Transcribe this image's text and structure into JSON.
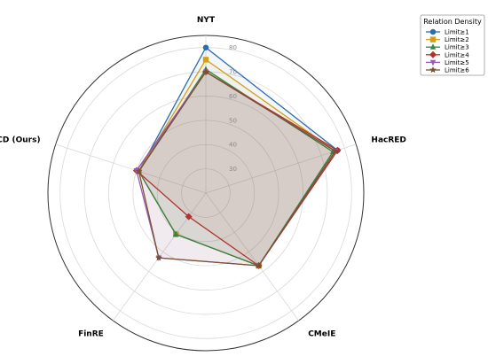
{
  "chart_data": {
    "type": "radar",
    "axes": [
      "NYT",
      "HacRED",
      "CMeIE",
      "FinRE",
      "SNCD (Ours)"
    ],
    "r_ticks": [
      30,
      40,
      50,
      60,
      70,
      80
    ],
    "r_min": 20,
    "r_max": 85,
    "grid": true,
    "legend_title": "Relation Density",
    "legend_position": "top-right",
    "series": [
      {
        "name": "Limit≥1",
        "color": "#2b6cb0",
        "marker": "circle",
        "values": [
          80,
          77,
          57,
          41,
          49
        ]
      },
      {
        "name": "Limit≥2",
        "color": "#d4a017",
        "marker": "square",
        "values": [
          75,
          76,
          57,
          41,
          49
        ]
      },
      {
        "name": "Limit≥3",
        "color": "#2f8a3b",
        "marker": "triangle-up",
        "values": [
          71,
          75,
          57,
          41,
          49
        ]
      },
      {
        "name": "Limit≥4",
        "color": "#b5312a",
        "marker": "diamond",
        "values": [
          70,
          77,
          57,
          32,
          50
        ]
      },
      {
        "name": "Limit≥5",
        "color": "#9b59b6",
        "marker": "triangle-down",
        "values": [
          70,
          76,
          57,
          53,
          50
        ]
      },
      {
        "name": "Limit≥6",
        "color": "#7a5230",
        "marker": "star",
        "values": [
          70,
          76,
          57,
          53,
          49
        ]
      }
    ]
  }
}
